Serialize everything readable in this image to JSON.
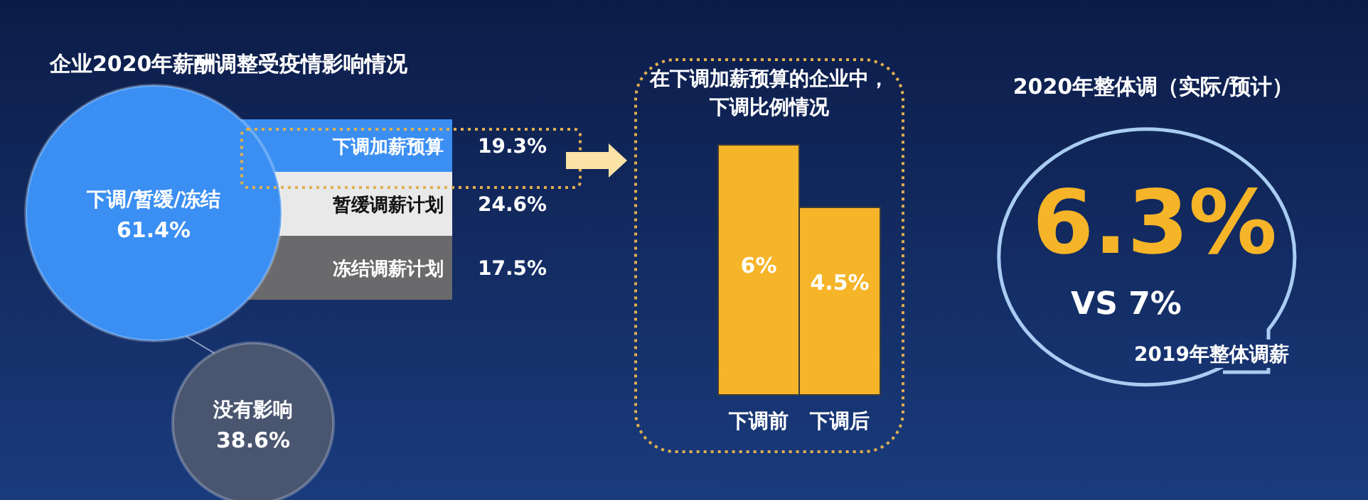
{
  "chart_data": [
    {
      "type": "other",
      "title": "企业2020年薪酬调整受疫情影响情况",
      "categories": [
        "下调/暂缓/冻结",
        "没有影响"
      ],
      "values": [
        61.4,
        38.6
      ],
      "value_labels": [
        "61.4%",
        "38.6%"
      ],
      "colors": [
        "#3b8ff2",
        "#4a5670"
      ]
    },
    {
      "type": "other",
      "categories": [
        "下调加薪预算",
        "暂缓调薪计划",
        "冻结调薪计划"
      ],
      "value_labels": [
        "19.3%",
        "24.6%",
        "17.5%"
      ],
      "colors": [
        "#3b8ff2",
        "#e9e9e9",
        "#6a6a6c"
      ]
    },
    {
      "type": "bar",
      "title": "在下调加薪预算的企业中，下调比例情况",
      "categories": [
        "下调前",
        "下调后"
      ],
      "values": [
        6,
        4.5
      ],
      "value_labels": [
        "6%",
        "4.5%"
      ],
      "color": "#f6b428"
    },
    {
      "type": "other",
      "title": "2020年整体调（实际/预计）",
      "annotations": [
        "6.3%",
        "VS 7%",
        "2019年整体调薪"
      ]
    }
  ]
}
